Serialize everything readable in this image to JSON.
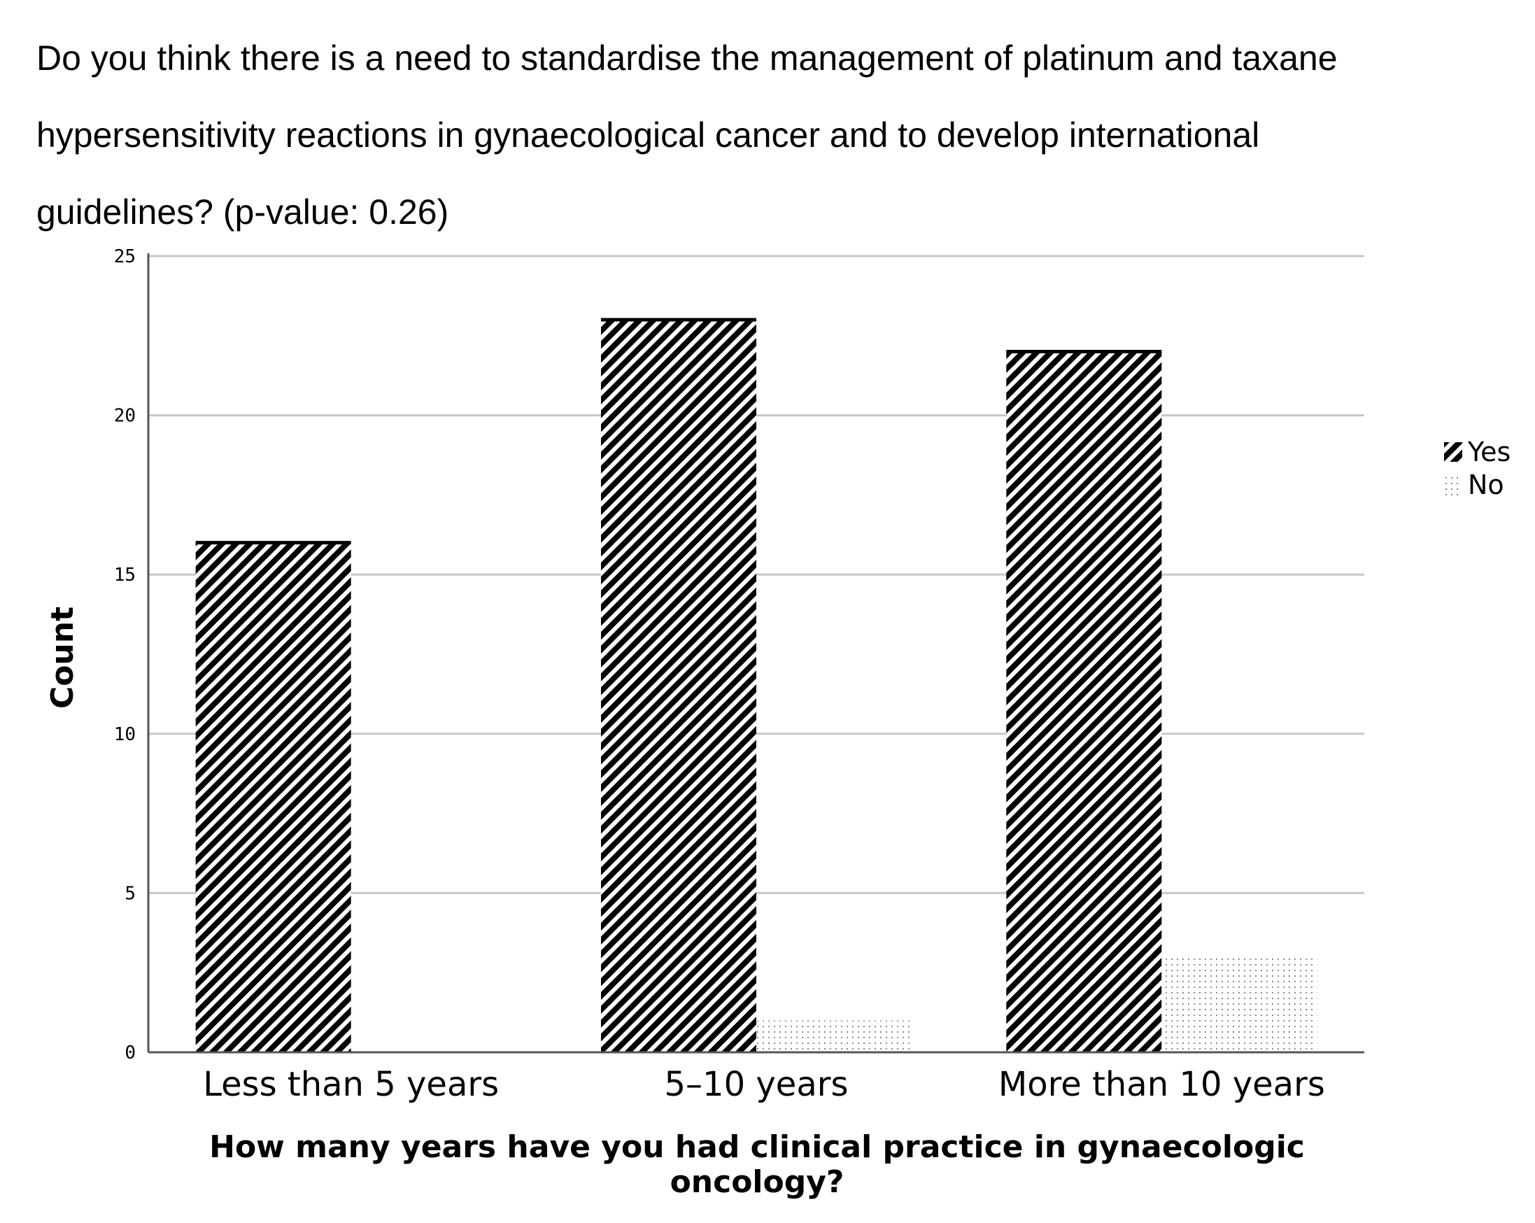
{
  "title": {
    "lines": [
      "Do you think there is a need to standardise the management of platinum and taxane",
      "hypersensitivity reactions in gynaecological cancer and to develop international",
      "guidelines? (p-value: 0.26)"
    ]
  },
  "chart_data": {
    "type": "bar",
    "categories": [
      "Less than 5 years",
      "5–10 years",
      "More than 10 years"
    ],
    "series": [
      {
        "name": "Yes",
        "values": [
          16,
          23,
          22
        ],
        "pattern": "diagonal-hatch",
        "color": "#000000"
      },
      {
        "name": "No",
        "values": [
          0,
          1,
          3
        ],
        "pattern": "dotted",
        "color": "#9a9a9a"
      }
    ],
    "xlabel_lines": [
      "How many years have you had clinical practice in gynaecologic",
      "oncology?"
    ],
    "ylabel": "Count",
    "ylim": [
      0,
      25
    ],
    "yticks": [
      0,
      5,
      10,
      15,
      20,
      25
    ],
    "grid": true,
    "legend_position": "right"
  }
}
